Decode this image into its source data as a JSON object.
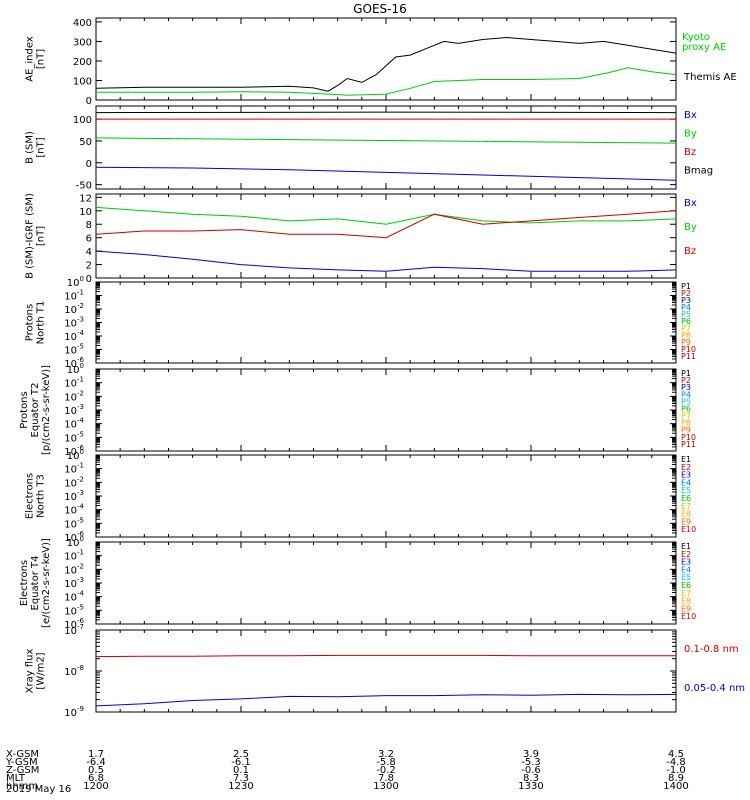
{
  "title": "GOES-16",
  "date_label": "2019 May 16",
  "footer": {
    "rows": [
      {
        "label": "X-GSM",
        "values": [
          "1.7",
          "2.5",
          "3.2",
          "3.9",
          "4.5"
        ]
      },
      {
        "label": "Y-GSM",
        "values": [
          "-6.4",
          "-6.1",
          "-5.8",
          "-5.3",
          "-4.8"
        ]
      },
      {
        "label": "Z-GSM",
        "values": [
          "0.5",
          "0.1",
          "-0.2",
          "-0.6",
          "-1.0"
        ]
      },
      {
        "label": "MLT",
        "values": [
          "6.8",
          "7.3",
          "7.8",
          "8.3",
          "8.9"
        ]
      },
      {
        "label": "hhmm",
        "values": [
          "1200",
          "1230",
          "1300",
          "1330",
          "1400"
        ]
      }
    ]
  },
  "chart_data": [
    {
      "type": "line",
      "ylabel": "AE_index [nT]",
      "ylim": [
        0,
        420
      ],
      "yticks": [
        "0",
        "100",
        "200",
        "300",
        "400"
      ],
      "x_range": [
        "1200",
        "1400"
      ],
      "series": [
        {
          "name": "Kyoto proxy AE",
          "color": "#00cc00",
          "x": [
            0,
            10,
            20,
            30,
            40,
            48,
            52,
            55,
            60,
            65,
            70,
            80,
            90,
            100,
            106,
            110,
            115,
            120
          ],
          "values": [
            40,
            40,
            40,
            42,
            40,
            30,
            25,
            26,
            30,
            60,
            95,
            105,
            105,
            110,
            140,
            165,
            145,
            130
          ]
        },
        {
          "name": "Themis AE",
          "color": "#000000",
          "x": [
            0,
            10,
            20,
            30,
            40,
            45,
            48,
            50,
            52,
            55,
            58,
            62,
            65,
            68,
            72,
            75,
            80,
            85,
            90,
            95,
            100,
            105,
            110,
            115,
            120
          ],
          "values": [
            60,
            65,
            65,
            65,
            70,
            62,
            45,
            75,
            110,
            90,
            130,
            220,
            230,
            260,
            300,
            290,
            310,
            320,
            310,
            300,
            290,
            300,
            280,
            260,
            240
          ]
        }
      ],
      "legend": [
        "Kyoto proxy AE",
        "Themis AE"
      ]
    },
    {
      "type": "line",
      "ylabel": "B (SM) [nT]",
      "ylim": [
        -60,
        130
      ],
      "yticks": [
        "-50",
        "0",
        "50",
        "100"
      ],
      "series": [
        {
          "name": "Bx",
          "color": "#0000cc",
          "x": [
            0,
            20,
            40,
            60,
            80,
            100,
            120
          ],
          "values": [
            -10,
            -12,
            -16,
            -22,
            -28,
            -34,
            -40
          ]
        },
        {
          "name": "By",
          "color": "#00cc00",
          "x": [
            0,
            20,
            40,
            60,
            80,
            100,
            120
          ],
          "values": [
            57,
            55,
            53,
            51,
            49,
            47,
            45
          ]
        },
        {
          "name": "Bz",
          "color": "#cc0000",
          "x": [
            0,
            60,
            120
          ],
          "values": [
            100,
            100,
            100
          ]
        },
        {
          "name": "Bmag",
          "color": "#000000",
          "x": [
            0,
            60,
            120
          ],
          "values": [
            115,
            116,
            115
          ]
        }
      ],
      "legend": [
        "Bx",
        "By",
        "Bz",
        "Bmag"
      ]
    },
    {
      "type": "line",
      "ylabel": "B (SM)-IGRF (SM) [nT]",
      "ylim": [
        0,
        12.5
      ],
      "yticks": [
        "0",
        "2",
        "4",
        "6",
        "8",
        "10",
        "12"
      ],
      "series": [
        {
          "name": "Bx",
          "color": "#0000cc",
          "x": [
            0,
            10,
            20,
            30,
            40,
            50,
            60,
            70,
            80,
            90,
            100,
            110,
            120
          ],
          "values": [
            4.0,
            3.5,
            2.8,
            2.0,
            1.5,
            1.2,
            1.0,
            1.6,
            1.4,
            1.0,
            1.0,
            1.0,
            1.2
          ]
        },
        {
          "name": "By",
          "color": "#00cc00",
          "x": [
            0,
            10,
            20,
            30,
            40,
            50,
            60,
            70,
            80,
            90,
            100,
            110,
            120
          ],
          "values": [
            10.5,
            10.0,
            9.5,
            9.2,
            8.5,
            8.8,
            8.0,
            9.5,
            8.5,
            8.2,
            8.5,
            8.5,
            8.8
          ]
        },
        {
          "name": "Bz",
          "color": "#cc0000",
          "x": [
            0,
            10,
            20,
            30,
            40,
            50,
            60,
            70,
            80,
            90,
            100,
            110,
            120
          ],
          "values": [
            6.5,
            7.0,
            7.0,
            7.2,
            6.5,
            6.5,
            6.0,
            9.5,
            8.0,
            8.5,
            9.0,
            9.5,
            10.0
          ]
        }
      ],
      "legend": [
        "Bx",
        "By",
        "Bz"
      ]
    },
    {
      "type": "line",
      "ylabel": "Protons North T1",
      "log_scale": true,
      "yticks": [
        "10^0",
        "10^-1",
        "10^-2",
        "10^-3",
        "10^-4",
        "10^-5",
        "10^-6"
      ],
      "series": [],
      "legend": [
        "P1",
        "P2",
        "P3",
        "P4",
        "P5",
        "P6",
        "P7",
        "P8",
        "P9",
        "P10",
        "P11"
      ]
    },
    {
      "type": "line",
      "ylabel": "Protons Equator T2 [p/(cm2-s-sr-keV)]",
      "log_scale": true,
      "yticks": [
        "10^0",
        "10^-1",
        "10^-2",
        "10^-3",
        "10^-4",
        "10^-5",
        "10^-6"
      ],
      "series": [],
      "legend": [
        "P1",
        "P2",
        "P3",
        "P4",
        "P5",
        "P6",
        "P7",
        "P8",
        "P9",
        "P10",
        "P11"
      ]
    },
    {
      "type": "line",
      "ylabel": "Electrons North T3",
      "log_scale": true,
      "yticks": [
        "10^0",
        "10^-1",
        "10^-2",
        "10^-3",
        "10^-4",
        "10^-5",
        "10^-6"
      ],
      "series": [],
      "legend": [
        "E1",
        "E2",
        "E3",
        "E4",
        "E5",
        "E6",
        "E7",
        "E8",
        "E9",
        "E10"
      ]
    },
    {
      "type": "line",
      "ylabel": "Electrons Equator T4 [e/(cm2-s-sr-keV)]",
      "log_scale": true,
      "yticks": [
        "10^0",
        "10^-1",
        "10^-2",
        "10^-3",
        "10^-4",
        "10^-5",
        "10^-6"
      ],
      "series": [],
      "legend": [
        "E1",
        "E2",
        "E3",
        "E4",
        "E5",
        "E6",
        "E7",
        "E8",
        "E9",
        "E10"
      ]
    },
    {
      "type": "line",
      "ylabel": "Xray flux [W/m2]",
      "log_scale": true,
      "yticks": [
        "10^-7",
        "10^-8",
        "10^-9"
      ],
      "series": [
        {
          "name": "0.1-0.8 nm",
          "color": "#cc0000",
          "x": [
            0,
            10,
            20,
            30,
            40,
            50,
            60,
            70,
            80,
            90,
            100,
            110,
            120
          ],
          "values": [
            -7.65,
            -7.64,
            -7.64,
            -7.63,
            -7.63,
            -7.62,
            -7.62,
            -7.62,
            -7.62,
            -7.63,
            -7.63,
            -7.63,
            -7.63
          ]
        },
        {
          "name": "0.05-0.4 nm",
          "color": "#0000cc",
          "x": [
            0,
            10,
            20,
            30,
            40,
            50,
            60,
            70,
            80,
            90,
            100,
            110,
            120
          ],
          "values": [
            -8.85,
            -8.8,
            -8.72,
            -8.68,
            -8.62,
            -8.63,
            -8.6,
            -8.6,
            -8.58,
            -8.59,
            -8.57,
            -8.58,
            -8.57
          ]
        }
      ],
      "legend": [
        "0.1-0.8 nm",
        "0.05-0.4 nm"
      ]
    }
  ],
  "legend_colors": {
    "P": [
      "#000000",
      "#cc0000",
      "#0000cc",
      "#0077ff",
      "#00cccc",
      "#00bb00",
      "#cccc00",
      "#ffaa00",
      "#ff6600",
      "#cc0000",
      "#990000"
    ],
    "E": [
      "#000000",
      "#cc0000",
      "#0000cc",
      "#0077ff",
      "#00cccc",
      "#00bb00",
      "#cccc00",
      "#ffaa00",
      "#ff6600",
      "#cc0000"
    ]
  }
}
